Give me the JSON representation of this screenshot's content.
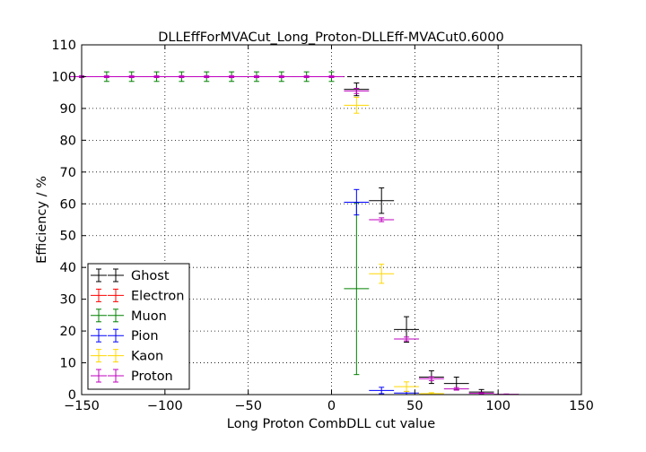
{
  "chart_data": {
    "type": "scatter",
    "title": "DLLEffForMVACut_Long_Proton-DLLEff-MVACut0.6000",
    "xlabel": "Long Proton CombDLL cut value",
    "ylabel": "Efficiency / %",
    "xlim": [
      -150,
      150
    ],
    "ylim": [
      0,
      110
    ],
    "xticks": [
      -150,
      -100,
      -50,
      0,
      50,
      100,
      150
    ],
    "yticks": [
      0,
      10,
      20,
      30,
      40,
      50,
      60,
      70,
      80,
      90,
      100,
      110
    ],
    "xtick_labels": [
      "−150",
      "−100",
      "−50",
      "0",
      "50",
      "100",
      "150"
    ],
    "ytick_labels": [
      "0",
      "10",
      "20",
      "30",
      "40",
      "50",
      "60",
      "70",
      "80",
      "90",
      "100",
      "110"
    ],
    "grid": true,
    "legend_position": "bottom-left",
    "reference_line": {
      "y": 100,
      "style": "dashed"
    },
    "series": [
      {
        "name": "Ghost",
        "color": "#000000",
        "points": [
          {
            "x": 15,
            "y": 96,
            "xerr": 7.5,
            "yerr": 2
          },
          {
            "x": 30,
            "y": 61,
            "xerr": 7.5,
            "yerr": 4
          },
          {
            "x": 45,
            "y": 20.5,
            "xerr": 7.5,
            "yerr": 4
          },
          {
            "x": 60,
            "y": 5.5,
            "xerr": 7.5,
            "yerr": 2
          },
          {
            "x": 75,
            "y": 3.5,
            "xerr": 7.5,
            "yerr": 2
          },
          {
            "x": 90,
            "y": 0.8,
            "xerr": 7.5,
            "yerr": 0.8
          }
        ]
      },
      {
        "name": "Electron",
        "color": "#ff0000",
        "points": [
          {
            "x": -145,
            "y": 0,
            "xerr": 0,
            "yerr": 0
          },
          {
            "x": -130,
            "y": 0,
            "xerr": 0,
            "yerr": 0
          },
          {
            "x": -115,
            "y": 0,
            "xerr": 0,
            "yerr": 0
          },
          {
            "x": -100,
            "y": 0,
            "xerr": 0,
            "yerr": 0
          },
          {
            "x": -85,
            "y": 0,
            "xerr": 0,
            "yerr": 0
          },
          {
            "x": -70,
            "y": 0,
            "xerr": 0,
            "yerr": 0
          },
          {
            "x": -55,
            "y": 0,
            "xerr": 0,
            "yerr": 0
          },
          {
            "x": -40,
            "y": 0,
            "xerr": 0,
            "yerr": 0
          },
          {
            "x": -25,
            "y": 0,
            "xerr": 0,
            "yerr": 0
          },
          {
            "x": -10,
            "y": 0,
            "xerr": 0,
            "yerr": 0
          },
          {
            "x": 5,
            "y": 0,
            "xerr": 0,
            "yerr": 0
          },
          {
            "x": 20,
            "y": 0,
            "xerr": 0,
            "yerr": 0
          },
          {
            "x": 35,
            "y": 0,
            "xerr": 0,
            "yerr": 0
          },
          {
            "x": 50,
            "y": 0,
            "xerr": 0,
            "yerr": 0
          },
          {
            "x": 65,
            "y": 0,
            "xerr": 0,
            "yerr": 0
          },
          {
            "x": 80,
            "y": 0,
            "xerr": 0,
            "yerr": 0
          },
          {
            "x": 95,
            "y": 0,
            "xerr": 0,
            "yerr": 0
          },
          {
            "x": 110,
            "y": 0,
            "xerr": 0,
            "yerr": 0
          },
          {
            "x": 125,
            "y": 0,
            "xerr": 0,
            "yerr": 0
          },
          {
            "x": 140,
            "y": 0,
            "xerr": 0,
            "yerr": 0
          }
        ]
      },
      {
        "name": "Muon",
        "color": "#008000",
        "points": [
          {
            "x": -135,
            "y": 100,
            "xerr": 7.5,
            "yerr": 1.5
          },
          {
            "x": -120,
            "y": 100,
            "xerr": 7.5,
            "yerr": 1.5
          },
          {
            "x": -105,
            "y": 100,
            "xerr": 7.5,
            "yerr": 1.5
          },
          {
            "x": -90,
            "y": 100,
            "xerr": 7.5,
            "yerr": 1.5
          },
          {
            "x": -75,
            "y": 100,
            "xerr": 7.5,
            "yerr": 1.5
          },
          {
            "x": -60,
            "y": 100,
            "xerr": 7.5,
            "yerr": 1.5
          },
          {
            "x": -45,
            "y": 100,
            "xerr": 7.5,
            "yerr": 1.5
          },
          {
            "x": -30,
            "y": 100,
            "xerr": 7.5,
            "yerr": 1.5
          },
          {
            "x": -15,
            "y": 100,
            "xerr": 7.5,
            "yerr": 1.5
          },
          {
            "x": 0,
            "y": 100,
            "xerr": 7.5,
            "yerr": 1.5
          },
          {
            "x": 15,
            "y": 33.3,
            "xerr": 7.5,
            "yerr": 27
          }
        ]
      },
      {
        "name": "Pion",
        "color": "#0000ff",
        "points": [
          {
            "x": 15,
            "y": 60.5,
            "xerr": 7.5,
            "yerr": 4
          },
          {
            "x": 30,
            "y": 1.3,
            "xerr": 7.5,
            "yerr": 1
          },
          {
            "x": 45,
            "y": 0.5,
            "xerr": 7.5,
            "yerr": 0.5
          }
        ]
      },
      {
        "name": "Kaon",
        "color": "#ffd700",
        "points": [
          {
            "x": 15,
            "y": 91,
            "xerr": 7.5,
            "yerr": 2.5
          },
          {
            "x": 30,
            "y": 38,
            "xerr": 7.5,
            "yerr": 3
          },
          {
            "x": 45,
            "y": 2.5,
            "xerr": 7.5,
            "yerr": 1.5
          },
          {
            "x": 60,
            "y": 0.3,
            "xerr": 7.5,
            "yerr": 0.3
          }
        ]
      },
      {
        "name": "Proton",
        "color": "#bf00bf",
        "points": [
          {
            "x": -150,
            "y": 100,
            "xerr": 7.5,
            "yerr": 0.3
          },
          {
            "x": -135,
            "y": 100,
            "xerr": 7.5,
            "yerr": 0.3
          },
          {
            "x": -120,
            "y": 100,
            "xerr": 7.5,
            "yerr": 0.3
          },
          {
            "x": -105,
            "y": 100,
            "xerr": 7.5,
            "yerr": 0.3
          },
          {
            "x": -90,
            "y": 100,
            "xerr": 7.5,
            "yerr": 0.3
          },
          {
            "x": -75,
            "y": 100,
            "xerr": 7.5,
            "yerr": 0.3
          },
          {
            "x": -60,
            "y": 100,
            "xerr": 7.5,
            "yerr": 0.3
          },
          {
            "x": -45,
            "y": 100,
            "xerr": 7.5,
            "yerr": 0.3
          },
          {
            "x": -30,
            "y": 100,
            "xerr": 7.5,
            "yerr": 0.3
          },
          {
            "x": -15,
            "y": 100,
            "xerr": 7.5,
            "yerr": 0.3
          },
          {
            "x": 0,
            "y": 100,
            "xerr": 7.5,
            "yerr": 0.3
          },
          {
            "x": 15,
            "y": 95.5,
            "xerr": 7.5,
            "yerr": 0.8
          },
          {
            "x": 30,
            "y": 55,
            "xerr": 7.5,
            "yerr": 0.6
          },
          {
            "x": 45,
            "y": 17.5,
            "xerr": 7.5,
            "yerr": 0.6
          },
          {
            "x": 60,
            "y": 5,
            "xerr": 7.5,
            "yerr": 0.6
          },
          {
            "x": 75,
            "y": 1.8,
            "xerr": 7.5,
            "yerr": 0.4
          },
          {
            "x": 90,
            "y": 0.4,
            "xerr": 7.5,
            "yerr": 0.2
          },
          {
            "x": 105,
            "y": 0.1,
            "xerr": 7.5,
            "yerr": 0.1
          }
        ]
      }
    ]
  }
}
